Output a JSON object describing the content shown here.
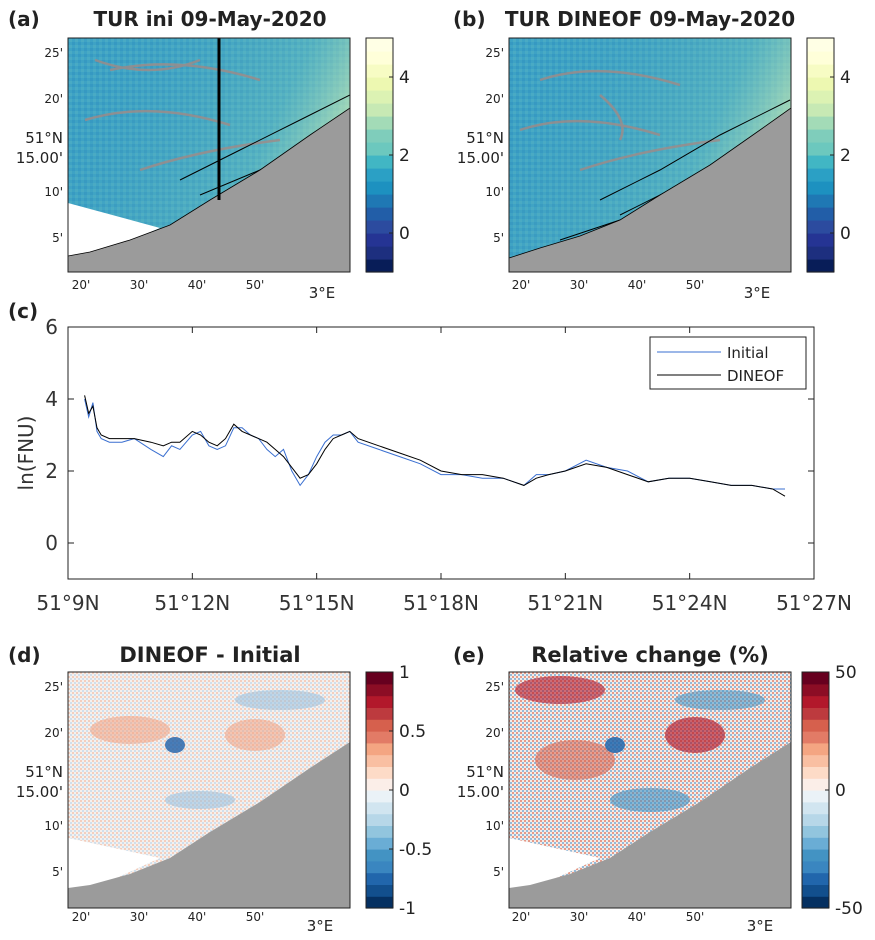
{
  "panels": {
    "a": {
      "letter": "(a)",
      "title": "TUR ini 09-May-2020",
      "lat_ticks": [
        "25'",
        "20'",
        "10'",
        "5'"
      ],
      "lat_main": [
        "51°N",
        "15.00'"
      ],
      "lon_ticks": [
        "20'",
        "30'",
        "40'",
        "50'"
      ],
      "lon_main": "3°E",
      "colorbar": {
        "min": -1,
        "max": 5,
        "ticks": [
          "4",
          "2",
          "0"
        ],
        "tick_values": [
          4,
          2,
          0
        ]
      },
      "colors": {
        "sea_mid": "#3a9fc4",
        "sea_light": "#b8dfb0",
        "land": "#9b9b9b",
        "missing": "#ffffff",
        "transect": "#000000"
      }
    },
    "b": {
      "letter": "(b)",
      "title": "TUR DINEOF 09-May-2020",
      "lat_ticks": [
        "25'",
        "20'",
        "10'",
        "5'"
      ],
      "lat_main": [
        "51°N",
        "15.00'"
      ],
      "lon_ticks": [
        "20'",
        "30'",
        "40'",
        "50'"
      ],
      "lon_main": "3°E",
      "colorbar": {
        "min": -1,
        "max": 5,
        "ticks": [
          "4",
          "2",
          "0"
        ],
        "tick_values": [
          4,
          2,
          0
        ]
      }
    },
    "d": {
      "letter": "(d)",
      "title": "DINEOF - Initial",
      "lat_ticks": [
        "25'",
        "20'",
        "10'",
        "5'"
      ],
      "lat_main": [
        "51°N",
        "15.00'"
      ],
      "lon_ticks": [
        "20'",
        "30'",
        "40'",
        "50'"
      ],
      "lon_main": "3°E",
      "colorbar": {
        "min": -1,
        "max": 1,
        "ticks": [
          "1",
          "0.5",
          "0",
          "-0.5",
          "-1"
        ],
        "tick_values": [
          1,
          0.5,
          0,
          -0.5,
          -1
        ]
      }
    },
    "e": {
      "letter": "(e)",
      "title": "Relative change (%)",
      "lat_ticks": [
        "25'",
        "20'",
        "10'",
        "5'"
      ],
      "lat_main": [
        "51°N",
        "15.00'"
      ],
      "lon_ticks": [
        "20'",
        "30'",
        "40'",
        "50'"
      ],
      "lon_main": "3°E",
      "colorbar": {
        "min": -50,
        "max": 50,
        "ticks": [
          "50",
          "0",
          "-50"
        ],
        "tick_values": [
          50,
          0,
          -50
        ]
      }
    }
  },
  "chart_data": {
    "letter": "(c)",
    "type": "line",
    "ylabel": "ln(FNU)",
    "xlabel": "",
    "ylim": [
      -1,
      6
    ],
    "yticks": [
      0,
      2,
      4,
      6
    ],
    "xlim": [
      0,
      18
    ],
    "xtick_values": [
      0,
      3,
      6,
      9,
      12,
      15,
      18
    ],
    "xtick_labels": [
      "51°9N",
      "51°12N",
      "51°15N",
      "51°18N",
      "51°21N",
      "51°24N",
      "51°27N"
    ],
    "legend": {
      "position": "top-right",
      "entries": [
        "Initial",
        "DINEOF"
      ]
    },
    "series": [
      {
        "name": "Initial",
        "color": "#3a6fd0",
        "x": [
          0.4,
          0.5,
          0.6,
          0.7,
          0.8,
          1.0,
          1.3,
          1.6,
          2.0,
          2.3,
          2.5,
          2.7,
          3.0,
          3.2,
          3.4,
          3.6,
          3.8,
          4.0,
          4.2,
          4.4,
          4.6,
          4.8,
          5.0,
          5.2,
          5.4,
          5.6,
          5.8,
          6.0,
          6.2,
          6.4,
          6.6,
          6.8,
          7.0,
          7.5,
          8.0,
          8.5,
          9.0,
          9.5,
          10.0,
          10.5,
          11.0,
          11.3,
          11.6,
          12.0,
          12.5,
          13.0,
          13.5,
          14.0,
          14.5,
          15.0,
          15.5,
          16.0,
          16.5,
          17.0,
          17.3
        ],
        "y": [
          4.0,
          3.5,
          3.9,
          3.1,
          2.9,
          2.8,
          2.8,
          2.9,
          2.6,
          2.4,
          2.7,
          2.6,
          3.0,
          3.1,
          2.7,
          2.6,
          2.7,
          3.2,
          3.2,
          3.0,
          2.9,
          2.6,
          2.4,
          2.6,
          2.0,
          1.6,
          1.9,
          2.4,
          2.8,
          3.0,
          3.0,
          3.1,
          2.8,
          2.6,
          2.4,
          2.2,
          1.9,
          1.9,
          1.8,
          1.8,
          1.6,
          1.9,
          1.9,
          2.0,
          2.3,
          2.1,
          2.0,
          1.7,
          1.8,
          1.8,
          1.7,
          1.6,
          1.6,
          1.5,
          1.5
        ]
      },
      {
        "name": "DINEOF",
        "color": "#000000",
        "x": [
          0.4,
          0.5,
          0.6,
          0.7,
          0.8,
          1.0,
          1.3,
          1.6,
          2.0,
          2.3,
          2.5,
          2.7,
          3.0,
          3.2,
          3.4,
          3.6,
          3.8,
          4.0,
          4.2,
          4.4,
          4.6,
          4.8,
          5.0,
          5.2,
          5.4,
          5.6,
          5.8,
          6.0,
          6.2,
          6.4,
          6.6,
          6.8,
          7.0,
          7.5,
          8.0,
          8.5,
          9.0,
          9.5,
          10.0,
          10.5,
          11.0,
          11.3,
          11.6,
          12.0,
          12.5,
          13.0,
          13.5,
          14.0,
          14.5,
          15.0,
          15.5,
          16.0,
          16.5,
          17.0,
          17.3
        ],
        "y": [
          4.1,
          3.6,
          3.8,
          3.2,
          3.0,
          2.9,
          2.9,
          2.9,
          2.8,
          2.7,
          2.8,
          2.8,
          3.1,
          3.0,
          2.8,
          2.7,
          2.9,
          3.3,
          3.1,
          3.0,
          2.9,
          2.8,
          2.6,
          2.4,
          2.1,
          1.8,
          1.9,
          2.2,
          2.6,
          2.9,
          3.0,
          3.1,
          2.9,
          2.7,
          2.5,
          2.3,
          2.0,
          1.9,
          1.9,
          1.8,
          1.6,
          1.8,
          1.9,
          2.0,
          2.2,
          2.1,
          1.9,
          1.7,
          1.8,
          1.8,
          1.7,
          1.6,
          1.6,
          1.5,
          1.3
        ]
      }
    ]
  }
}
